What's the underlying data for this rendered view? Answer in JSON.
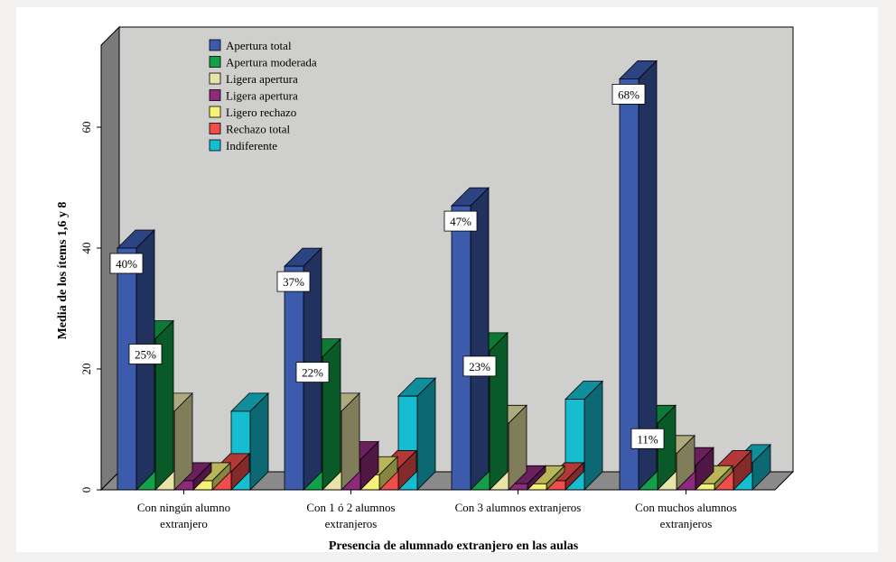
{
  "chart_data": {
    "type": "bar",
    "title": "",
    "xlabel": "Presencia de alumnado extranjero en las aulas",
    "ylabel": "Media de los ítems 1,6 y 8",
    "ylim": [
      0,
      70
    ],
    "yticks": [
      0,
      20,
      40,
      60
    ],
    "grid": false,
    "legend_position": "top-left",
    "categories": [
      [
        "Con ningún alumno",
        "extranjero"
      ],
      [
        "Con 1 ó 2 alumnos",
        "extranjeros"
      ],
      [
        "Con 3 alumnos extranjeros"
      ],
      [
        "Con muchos alumnos",
        "extranjeros"
      ]
    ],
    "series": [
      {
        "name": "Apertura total",
        "color": "#3c5bad",
        "values": [
          40,
          37,
          47,
          68
        ]
      },
      {
        "name": "Apertura moderada",
        "color": "#12a148",
        "values": [
          25,
          22,
          23,
          11
        ]
      },
      {
        "name": "Ligera apertura",
        "color": "#e8e3a6",
        "values": [
          13,
          13,
          11,
          6
        ]
      },
      {
        "name": "Ligera apertura",
        "color": "#8d2a7c",
        "values": [
          1.5,
          5,
          1,
          4
        ]
      },
      {
        "name": "Ligero rechazo",
        "color": "#f7f276",
        "values": [
          1.5,
          2.5,
          1,
          1
        ]
      },
      {
        "name": "Rechazo total",
        "color": "#ef4c4c",
        "values": [
          3,
          3.5,
          1.5,
          3.5
        ]
      },
      {
        "name": "Indiferente",
        "color": "#16bdd0",
        "values": [
          13,
          15.5,
          15,
          4.5
        ]
      }
    ],
    "data_labels": [
      {
        "series": 0,
        "category": 0,
        "text": "40%"
      },
      {
        "series": 1,
        "category": 0,
        "text": "25%"
      },
      {
        "series": 0,
        "category": 1,
        "text": "37%"
      },
      {
        "series": 1,
        "category": 1,
        "text": "22%"
      },
      {
        "series": 0,
        "category": 2,
        "text": "47%"
      },
      {
        "series": 1,
        "category": 2,
        "text": "23%"
      },
      {
        "series": 0,
        "category": 3,
        "text": "68%"
      },
      {
        "series": 1,
        "category": 3,
        "text": "11%"
      }
    ]
  }
}
